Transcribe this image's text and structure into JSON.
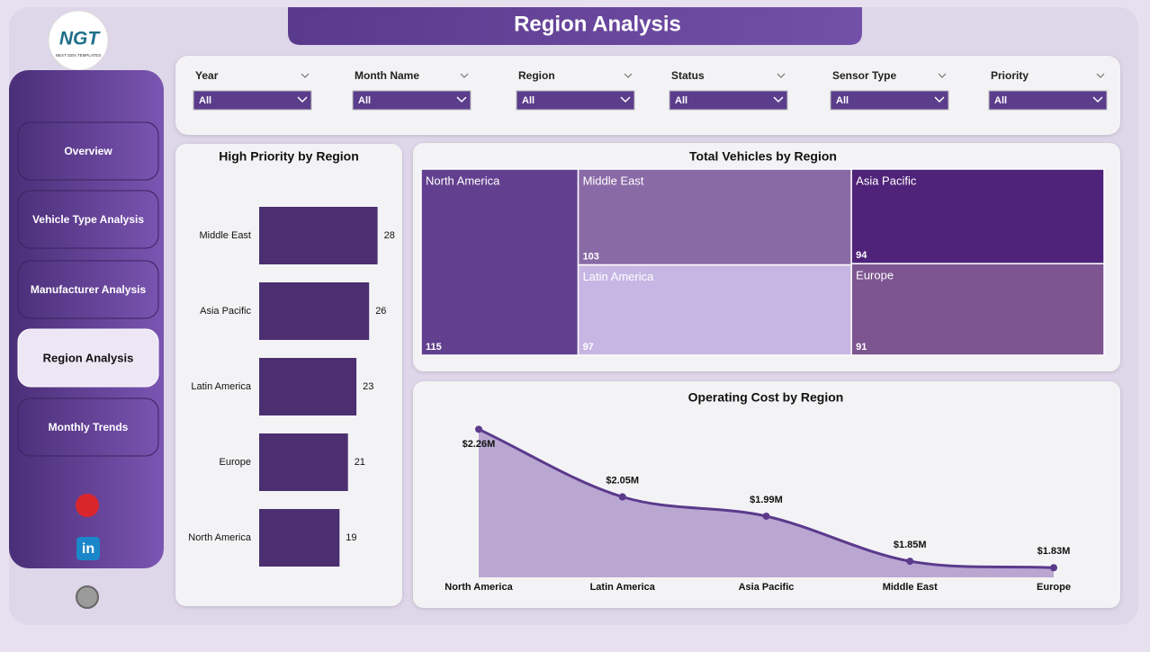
{
  "header": {
    "title": "Region Analysis"
  },
  "logo": {
    "text": "NGT",
    "tagline": "NEXT GEN TEMPLATES"
  },
  "nav": [
    "Overview",
    "Vehicle Type Analysis",
    "Manufacturer Analysis",
    "Region Analysis",
    "Monthly Trends"
  ],
  "filters": [
    {
      "label": "Year",
      "value": "All"
    },
    {
      "label": "Month Name",
      "value": "All"
    },
    {
      "label": "Region",
      "value": "All"
    },
    {
      "label": "Status",
      "value": "All"
    },
    {
      "label": "Sensor Type",
      "value": "All"
    },
    {
      "label": "Priority",
      "value": "All"
    }
  ],
  "chart_data": [
    {
      "type": "hbar",
      "title": "High Priority by Region",
      "categories": [
        "Middle East",
        "Asia Pacific",
        "Latin America",
        "Europe",
        "North America"
      ],
      "values": [
        28,
        26,
        23,
        21,
        19
      ],
      "color": "#4b2f70",
      "xlim": [
        0,
        30
      ]
    },
    {
      "type": "treemap",
      "title": "Total Vehicles by Region",
      "categories": [
        "North America",
        "Middle East",
        "Latin America",
        "Asia Pacific",
        "Europe"
      ],
      "values": [
        115,
        103,
        97,
        94,
        91
      ],
      "colors": [
        "#62408f",
        "#8a6aa6",
        "#c7b5e3",
        "#4f2379",
        "#7d5590"
      ]
    },
    {
      "type": "area",
      "title": "Operating Cost by Region",
      "categories": [
        "North America",
        "Latin America",
        "Asia Pacific",
        "Middle East",
        "Europe"
      ],
      "values": [
        2260000,
        2050000,
        1990000,
        1850000,
        1830000
      ],
      "value_labels": [
        "$2.26M",
        "$2.05M",
        "$1.99M",
        "$1.85M",
        "$1.83M"
      ],
      "color": "#5b3a8c",
      "fill": "#b9a7d2",
      "ylim": [
        1800000,
        2300000
      ]
    }
  ]
}
